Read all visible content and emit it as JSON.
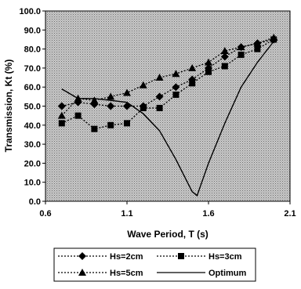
{
  "chart_data": {
    "type": "line",
    "xlabel": "Wave Period, T (s)",
    "ylabel": "Transmission, Kt (%)",
    "xlim": [
      0.6,
      2.1
    ],
    "ylim": [
      0,
      100
    ],
    "xticks": [
      "0.6",
      "1.1",
      "1.6",
      "2.1"
    ],
    "xtick_values": [
      0.6,
      1.1,
      1.6,
      2.1
    ],
    "yticks": [
      "0.0",
      "10.0",
      "20.0",
      "30.0",
      "40.0",
      "50.0",
      "60.0",
      "70.0",
      "80.0",
      "90.0",
      "100.0"
    ],
    "ytick_values": [
      0,
      10,
      20,
      30,
      40,
      50,
      60,
      70,
      80,
      90,
      100
    ],
    "grid": false,
    "legend_position": "bottom",
    "series": [
      {
        "name": "Hs=2cm",
        "marker": "diamond",
        "style": "dashed",
        "color": "#000000",
        "x": [
          0.7,
          0.8,
          0.9,
          1.0,
          1.1,
          1.2,
          1.3,
          1.4,
          1.5,
          1.6,
          1.7,
          1.8,
          1.9,
          2.0
        ],
        "y": [
          50,
          52,
          51,
          50,
          50,
          50,
          55,
          60,
          64,
          70,
          76,
          81,
          83,
          85
        ]
      },
      {
        "name": "Hs=3cm",
        "marker": "square",
        "style": "dashed",
        "color": "#000000",
        "x": [
          0.7,
          0.8,
          0.9,
          1.0,
          1.1,
          1.2,
          1.3,
          1.4,
          1.5,
          1.6,
          1.7,
          1.8,
          1.9,
          2.0
        ],
        "y": [
          41,
          45,
          38,
          40,
          41,
          49,
          49,
          56,
          62,
          68,
          71,
          77,
          80,
          85
        ]
      },
      {
        "name": "Hs=5cm",
        "marker": "triangle",
        "style": "dashed",
        "color": "#000000",
        "x": [
          0.7,
          0.8,
          0.9,
          1.0,
          1.1,
          1.2,
          1.3,
          1.4,
          1.5,
          1.6,
          1.7,
          1.8,
          1.9,
          2.0
        ],
        "y": [
          45,
          54,
          53,
          55,
          57,
          61,
          65,
          67,
          70,
          73,
          79,
          81,
          83,
          86
        ]
      },
      {
        "name": "Optimum",
        "marker": "none",
        "style": "solid",
        "color": "#000000",
        "x": [
          0.7,
          0.8,
          0.9,
          1.0,
          1.1,
          1.2,
          1.3,
          1.4,
          1.5,
          1.53,
          1.6,
          1.7,
          1.8,
          1.9,
          2.0
        ],
        "y": [
          59,
          54,
          54,
          53,
          52,
          46,
          37,
          22,
          5,
          3,
          20,
          41,
          60,
          73,
          84
        ]
      }
    ]
  }
}
